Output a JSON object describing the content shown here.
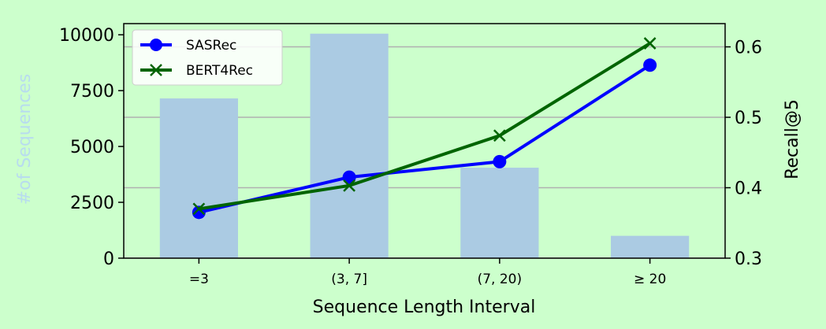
{
  "chart_data": {
    "type": "bar+line",
    "categories": [
      "=3",
      "(3, 7]",
      "(7, 20)",
      "≥ 20"
    ],
    "xlabel": "Sequence Length Interval",
    "ylabel_left": "#of Sequences",
    "ylabel_right": "Recall@5",
    "ylim_left": [
      0,
      10500
    ],
    "yticks_left": [
      "0",
      "2500",
      "5000",
      "7500",
      "10000"
    ],
    "ylim_right": [
      0.3,
      0.633
    ],
    "yticks_right": [
      "0.3",
      "0.4",
      "0.5",
      "0.6"
    ],
    "grid": "horizontal",
    "legend_position": "top-left",
    "bars": {
      "name": "#of Sequences",
      "values": [
        7150,
        10050,
        4050,
        1000
      ],
      "color": "#abcbe3"
    },
    "series": [
      {
        "name": "SASRec",
        "values": [
          0.365,
          0.415,
          0.437,
          0.574
        ],
        "color": "#0000ff",
        "marker": "circle"
      },
      {
        "name": "BERT4Rec",
        "values": [
          0.37,
          0.403,
          0.474,
          0.605
        ],
        "color": "#006400",
        "marker": "x"
      }
    ]
  }
}
